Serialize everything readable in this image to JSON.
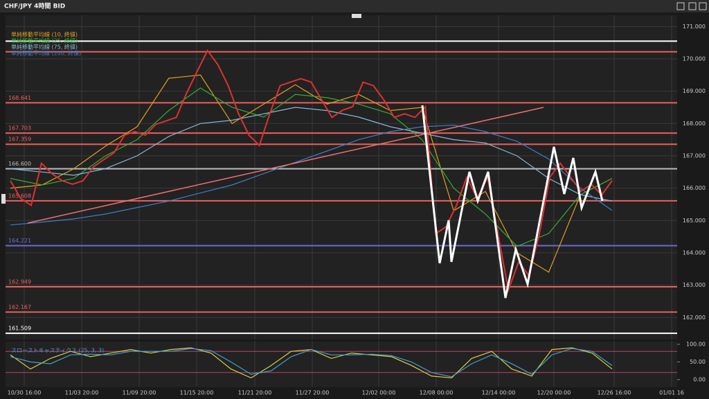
{
  "chart_data": [
    {
      "type": "line",
      "title": "CHF/JPY 4時間 BID",
      "xticks": [
        "10/30 16:00",
        "11/03 20:00",
        "11/09 20:00",
        "11/15 20:00",
        "11/21 20:00",
        "11/27 20:00",
        "12/02 00:00",
        "12/08 00:00",
        "12/14 00:00",
        "12/20 00:00",
        "12/26 16:00",
        "01/01 16"
      ],
      "ylim": [
        161.32,
        171.35
      ],
      "yticks": [
        {
          "value": 171,
          "label": "171.000"
        },
        {
          "value": 170,
          "label": "170.000"
        },
        {
          "value": 169,
          "label": "169.000"
        },
        {
          "value": 168,
          "label": "168.000"
        },
        {
          "value": 167,
          "label": "167.000"
        },
        {
          "value": 166,
          "label": "166.000"
        },
        {
          "value": 165,
          "label": "165.000"
        },
        {
          "value": 164,
          "label": "164.000"
        },
        {
          "value": 163,
          "label": "163.000"
        },
        {
          "value": 162,
          "label": "162.000"
        }
      ],
      "grid": true,
      "levels": [
        {
          "value": 170.55,
          "color": "#ffffff"
        },
        {
          "value": 170.22,
          "color": "#e86060"
        },
        {
          "value": 168.641,
          "label": "168.641",
          "color": "#e86060"
        },
        {
          "value": 167.703,
          "label": "167.703",
          "color": "#e86060"
        },
        {
          "value": 167.359,
          "label": "167.359",
          "color": "#e86060"
        },
        {
          "value": 166.6,
          "label": "166.600",
          "color": "#bbbbbb"
        },
        {
          "value": 165.608,
          "label": "165.608",
          "color": "#e86060"
        },
        {
          "value": 164.221,
          "label": "164.221",
          "color": "#6a6ad8"
        },
        {
          "value": 162.949,
          "label": "162.949",
          "color": "#e86060"
        },
        {
          "value": 162.167,
          "label": "162.167",
          "color": "#e86060"
        },
        {
          "value": 161.509,
          "label": "161.509",
          "color": "#ffffff"
        }
      ],
      "color": "#e03030",
      "values": [
        166.23,
        165.68,
        165.47,
        166.77,
        166.45,
        166.23,
        166.12,
        166.23,
        166.66,
        166.88,
        167.1,
        167.64,
        167.75,
        167.64,
        167.97,
        168.08,
        168.19,
        168.95,
        169.61,
        170.26,
        169.82,
        169.17,
        168.3,
        167.64,
        167.32,
        168.3,
        169.17,
        169.28,
        169.39,
        169.28,
        168.73,
        168.19,
        168.41,
        168.52,
        169.28,
        169.17,
        168.73,
        168.19,
        168.3,
        168.19,
        168.52,
        164.59,
        164.81,
        165.47,
        166.34,
        165.68,
        166.34,
        164.59,
        162.85,
        163.72,
        163.29,
        164.59,
        166.34,
        166.77,
        166.34,
        165.9,
        166.12,
        165.79,
        166.23
      ],
      "series": [
        {
          "name": "単純移動平均線 (10, 終値)",
          "color": "#e0a020",
          "values": [
            166.0,
            166.1,
            166.6,
            167.3,
            167.9,
            169.4,
            169.5,
            168.0,
            168.6,
            169.2,
            168.6,
            168.9,
            168.4,
            168.5,
            165.3,
            165.9,
            164.0,
            163.4,
            165.8,
            166.3
          ]
        },
        {
          "name": "単純移動平均線 (25, 終値)",
          "color": "#30b030",
          "values": [
            166.3,
            166.1,
            166.3,
            167.0,
            167.5,
            168.4,
            169.1,
            168.5,
            168.2,
            168.9,
            168.8,
            168.6,
            168.3,
            167.5,
            166.0,
            165.2,
            164.2,
            164.6,
            165.8,
            166.3
          ]
        },
        {
          "name": "単純移動平均線 (75, 終値)",
          "color": "#8ab8d8",
          "values": [
            166.6,
            166.5,
            166.4,
            166.6,
            167.0,
            167.6,
            168.0,
            168.1,
            168.3,
            168.5,
            168.4,
            168.2,
            167.9,
            167.7,
            167.5,
            167.4,
            167.0,
            166.3,
            165.8,
            165.6
          ]
        },
        {
          "name": "単純移動平均線 (200, 終値)",
          "color": "#3a80c8",
          "values": [
            164.86,
            164.95,
            165.05,
            165.2,
            165.4,
            165.6,
            165.85,
            166.1,
            166.45,
            166.8,
            167.15,
            167.5,
            167.75,
            167.9,
            167.95,
            167.75,
            167.45,
            166.9,
            166.0,
            165.31
          ]
        }
      ]
    },
    {
      "type": "line",
      "title": "スローストキャスティクス (25, 3, 3)",
      "ylim": [
        -19.6,
        109.8
      ],
      "yticks": [
        {
          "value": 100,
          "label": "100.00"
        },
        {
          "value": 50,
          "label": "50.00"
        },
        {
          "value": 0,
          "label": "0.00"
        }
      ],
      "levels": [
        {
          "value": 80,
          "color": "#c04070"
        },
        {
          "value": 20,
          "color": "#c04070"
        }
      ],
      "series": [
        {
          "color": "#d8d040",
          "values": [
            70,
            30,
            60,
            80,
            65,
            75,
            85,
            75,
            85,
            90,
            75,
            30,
            5,
            40,
            80,
            85,
            60,
            75,
            70,
            65,
            40,
            10,
            5,
            60,
            80,
            30,
            10,
            85,
            90,
            75,
            30
          ]
        },
        {
          "color": "#40a0d0",
          "values": [
            65,
            50,
            45,
            70,
            72,
            70,
            80,
            80,
            80,
            88,
            82,
            50,
            15,
            25,
            65,
            85,
            70,
            70,
            72,
            68,
            50,
            20,
            8,
            45,
            70,
            45,
            15,
            70,
            88,
            80,
            40
          ]
        }
      ]
    }
  ]
}
